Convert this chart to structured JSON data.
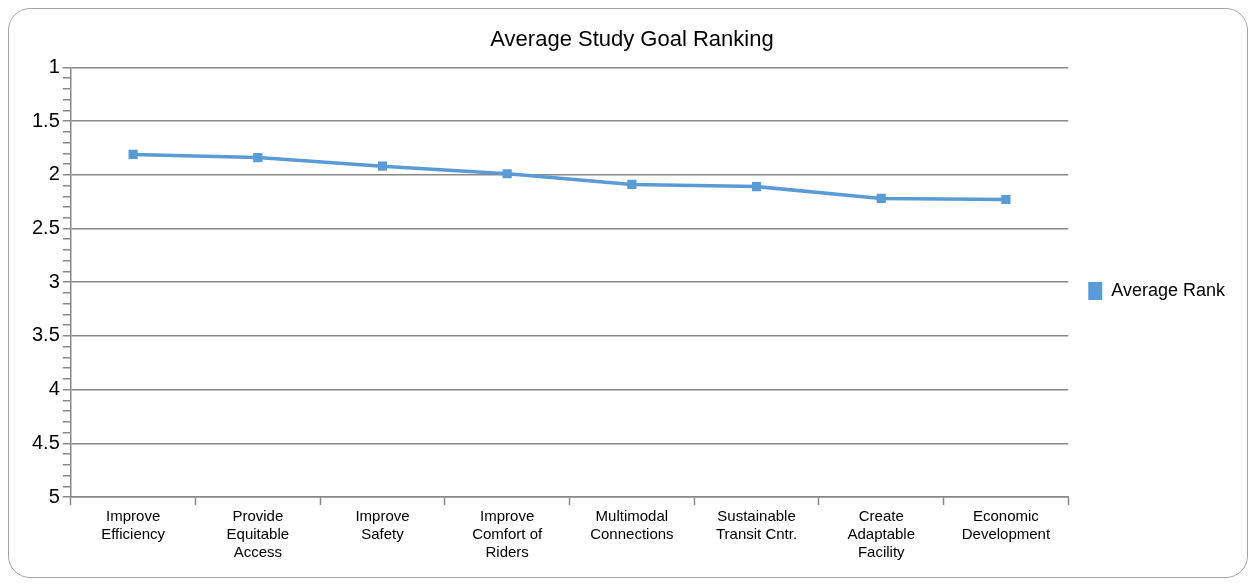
{
  "chart_data": {
    "type": "line",
    "title": "Average Study Goal Ranking",
    "categories": [
      "Improve\nEfficiency",
      "Provide\nEquitable\nAccess",
      "Improve\nSafety",
      "Improve\nComfort of\nRiders",
      "Multimodal\nConnections",
      "Sustainable\nTransit Cntr.",
      "Create\nAdaptable\nFacility",
      "Economic\nDevelopment"
    ],
    "series": [
      {
        "name": "Average Rank",
        "color": "#5b9bd5",
        "values": [
          1.81,
          1.84,
          1.92,
          1.99,
          2.09,
          2.11,
          2.22,
          2.23
        ]
      }
    ],
    "ylim": [
      5,
      1
    ],
    "yticks": [
      1,
      {
        "value": 1.1,
        "label": null
      },
      {
        "value": 1.2,
        "label": null
      },
      {
        "value": 1.3,
        "label": null
      },
      {
        "value": 1.4,
        "label": null
      },
      1.5,
      {
        "value": 1.6,
        "label": null
      },
      {
        "value": 1.7,
        "label": null
      },
      {
        "value": 1.8,
        "label": null
      },
      {
        "value": 1.9,
        "label": null
      },
      2,
      {
        "value": 2.1,
        "label": null
      },
      {
        "value": 2.2,
        "label": null
      },
      {
        "value": 2.3,
        "label": null
      },
      {
        "value": 2.4,
        "label": null
      },
      2.5,
      {
        "value": 2.6,
        "label": null
      },
      {
        "value": 2.7,
        "label": null
      },
      {
        "value": 2.8,
        "label": null
      },
      {
        "value": 2.9,
        "label": null
      },
      3,
      {
        "value": 3.1,
        "label": null
      },
      {
        "value": 3.2,
        "label": null
      },
      {
        "value": 3.3,
        "label": null
      },
      {
        "value": 3.4,
        "label": null
      },
      3.5,
      {
        "value": 3.6,
        "label": null
      },
      {
        "value": 3.7,
        "label": null
      },
      {
        "value": 3.8,
        "label": null
      },
      {
        "value": 3.9,
        "label": null
      },
      4,
      {
        "value": 4.1,
        "label": null
      },
      {
        "value": 4.2,
        "label": null
      },
      {
        "value": 4.3,
        "label": null
      },
      {
        "value": 4.4,
        "label": null
      },
      4.5,
      {
        "value": 4.6,
        "label": null
      },
      {
        "value": 4.7,
        "label": null
      },
      {
        "value": 4.8,
        "label": null
      },
      {
        "value": 4.9,
        "label": null
      },
      5
    ],
    "grid": "y",
    "legend": "right",
    "marker": "square",
    "line_style": "solid"
  }
}
